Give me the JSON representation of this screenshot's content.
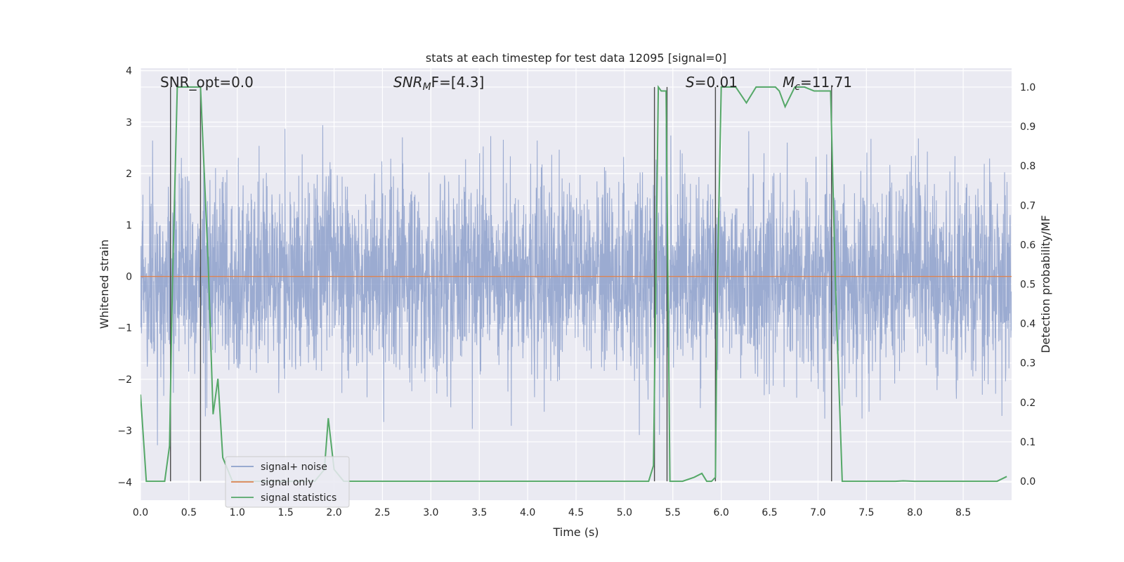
{
  "chart_data": {
    "type": "line",
    "title": "stats at each timestep for test data 12095 [signal=0]",
    "xlabel": "Time (s)",
    "ylabel": "Whitened strain",
    "y2label": "Detection probability/MF",
    "xlim": [
      0.0,
      9.0
    ],
    "ylim": [
      -4.35,
      4.05
    ],
    "y2lim": [
      -0.048,
      1.048
    ],
    "xticks": [
      "0.0",
      "0.5",
      "1.0",
      "1.5",
      "2.0",
      "2.5",
      "3.0",
      "3.5",
      "4.0",
      "4.5",
      "5.0",
      "5.5",
      "6.0",
      "6.5",
      "7.0",
      "7.5",
      "8.0",
      "8.5"
    ],
    "yticks": [
      "−4",
      "−3",
      "−2",
      "−1",
      "0",
      "1",
      "2",
      "3",
      "4"
    ],
    "y2ticks": [
      "0.0",
      "0.1",
      "0.2",
      "0.3",
      "0.4",
      "0.5",
      "0.6",
      "0.7",
      "0.8",
      "0.9",
      "1.0"
    ],
    "grid": true,
    "legend_position": "lower-left",
    "annotations": {
      "snr_opt": "SNR_opt=0.0",
      "snr_mf": "SNR",
      "snr_mf_sub": "M",
      "snr_mf_rest": "F=[4.3]",
      "s_val": "S",
      "s_rest": "=0.01",
      "mc_val": "M",
      "mc_sub": "c",
      "mc_rest": "=11.71"
    },
    "series": [
      {
        "name": "signal+ noise",
        "color": "#8da0cb",
        "axis": "left",
        "description_values": {
          "typical_amplitude": [
            -1.4,
            1.4
          ],
          "peak_range": [
            -4.0,
            3.2
          ]
        }
      },
      {
        "name": "signal only",
        "color": "#dd8452",
        "axis": "left",
        "x": [
          0.0,
          9.0
        ],
        "y": [
          0.0,
          0.0
        ]
      },
      {
        "name": "signal statistics",
        "color": "#55a868",
        "axis": "right",
        "x": [
          0.0,
          0.06,
          0.15,
          0.25,
          0.3,
          0.33,
          0.38,
          0.45,
          0.55,
          0.62,
          0.7,
          0.75,
          0.8,
          0.85,
          0.95,
          1.1,
          1.3,
          1.6,
          1.8,
          1.9,
          1.94,
          2.0,
          2.1,
          2.3,
          2.5,
          3.0,
          3.5,
          4.0,
          4.5,
          5.0,
          5.25,
          5.3,
          5.35,
          5.38,
          5.43,
          5.47,
          5.6,
          5.72,
          5.8,
          5.85,
          5.9,
          5.94,
          5.96,
          6.0,
          6.06,
          6.15,
          6.26,
          6.36,
          6.46,
          6.56,
          6.6,
          6.66,
          6.76,
          6.86,
          6.96,
          7.06,
          7.13,
          7.18,
          7.25,
          7.4,
          7.6,
          7.8,
          7.88,
          8.0,
          8.4,
          8.7,
          8.85,
          8.95
        ],
        "y": [
          0.22,
          0.0,
          0.0,
          0.0,
          0.09,
          0.5,
          1.0,
          1.0,
          1.0,
          1.0,
          0.55,
          0.17,
          0.26,
          0.06,
          0.0,
          0.0,
          0.0,
          0.0,
          0.0,
          0.03,
          0.16,
          0.03,
          0.0,
          0.0,
          0.0,
          0.0,
          0.0,
          0.0,
          0.0,
          0.0,
          0.0,
          0.04,
          1.0,
          0.99,
          0.99,
          0.0,
          0.0,
          0.01,
          0.02,
          0.0,
          0.0,
          0.01,
          0.5,
          1.0,
          1.0,
          1.0,
          0.96,
          1.0,
          1.0,
          1.0,
          0.99,
          0.95,
          1.0,
          1.0,
          0.99,
          0.99,
          0.99,
          0.5,
          0.0,
          0.0,
          0.0,
          0.0,
          0.001,
          0.0,
          0.0,
          0.0,
          0.0,
          0.012
        ]
      }
    ],
    "vertical_markers": {
      "color": "#4a4a4a",
      "x": [
        0.31,
        0.62,
        5.31,
        5.44,
        5.94,
        7.14
      ],
      "y2_top": [
        1.0,
        1.0,
        1.0,
        1.0,
        1.0,
        1.0
      ]
    }
  }
}
